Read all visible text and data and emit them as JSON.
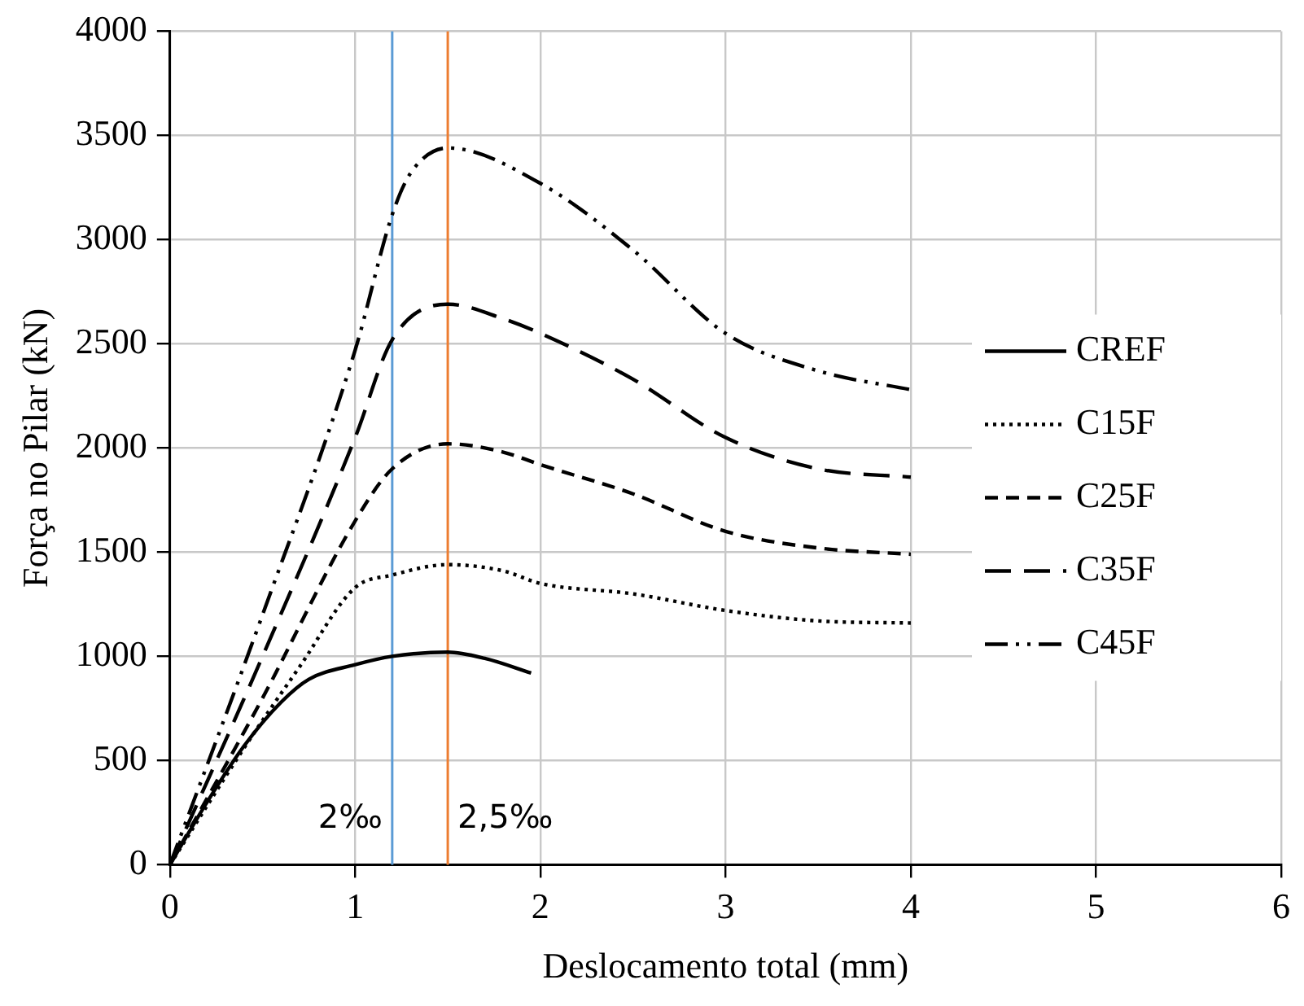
{
  "chart_data": {
    "type": "line",
    "xlabel": "Deslocamento total (mm)",
    "ylabel": "Força no Pilar (kN)",
    "xlim": [
      0,
      6
    ],
    "xticks": [
      0,
      1,
      2,
      3,
      4,
      5,
      6
    ],
    "ylim": [
      0,
      4000
    ],
    "yticks": [
      0,
      500,
      1000,
      1500,
      2000,
      2500,
      3000,
      3500,
      4000
    ],
    "grid": true,
    "legend": "right",
    "marker": "none",
    "ref_lines": [
      {
        "axis": "x",
        "value": 1.2,
        "label": "2‰",
        "color": "#5b9bd5"
      },
      {
        "axis": "x",
        "value": 1.5,
        "label": "2,5‰",
        "color": "#ed7d31"
      }
    ],
    "series": [
      {
        "name": "CREF",
        "color": "#000000",
        "line_style": "solid",
        "x": [
          0,
          0.2,
          0.4,
          0.6,
          0.75,
          1.0,
          1.2,
          1.5,
          1.7,
          1.95
        ],
        "values": [
          0,
          300,
          570,
          780,
          890,
          960,
          1000,
          1020,
          990,
          920
        ]
      },
      {
        "name": "C15F",
        "color": "#000000",
        "line_style": "dotted",
        "x": [
          0,
          0.4,
          0.7,
          1.0,
          1.2,
          1.5,
          1.8,
          2,
          2.5,
          3,
          3.5,
          4
        ],
        "values": [
          0,
          560,
          950,
          1330,
          1390,
          1440,
          1410,
          1350,
          1300,
          1220,
          1170,
          1160
        ]
      },
      {
        "name": "C25F",
        "color": "#000000",
        "line_style": "dashed",
        "x": [
          0,
          0.5,
          1.0,
          1.2,
          1.5,
          1.8,
          2,
          2.5,
          3,
          3.5,
          4
        ],
        "values": [
          0,
          800,
          1650,
          1900,
          2020,
          1980,
          1920,
          1780,
          1600,
          1520,
          1490
        ]
      },
      {
        "name": "C35F",
        "color": "#000000",
        "line_style": "longdash",
        "x": [
          0,
          0.5,
          1.0,
          1.2,
          1.5,
          1.8,
          2,
          2.5,
          3,
          3.5,
          4
        ],
        "values": [
          0,
          1000,
          2050,
          2520,
          2690,
          2620,
          2550,
          2330,
          2050,
          1900,
          1860
        ]
      },
      {
        "name": "C45F",
        "color": "#000000",
        "line_style": "dashdot",
        "x": [
          0,
          0.5,
          1.0,
          1.2,
          1.3,
          1.5,
          2,
          2.5,
          3,
          3.5,
          4
        ],
        "values": [
          0,
          1200,
          2470,
          3120,
          3320,
          3440,
          3270,
          2950,
          2550,
          2370,
          2280
        ]
      }
    ]
  }
}
